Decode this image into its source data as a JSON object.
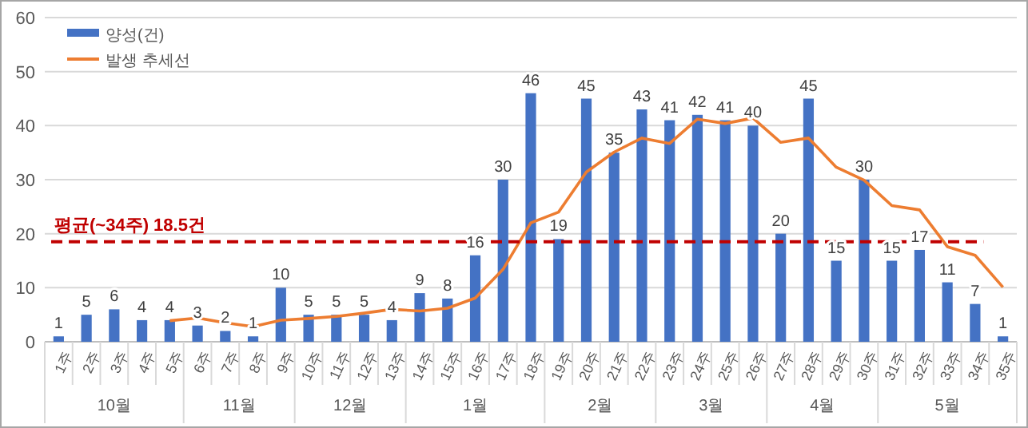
{
  "chart_data": {
    "type": "bar",
    "categories": [
      "1주",
      "2주",
      "3주",
      "4주",
      "5주",
      "6주",
      "7주",
      "8주",
      "9주",
      "10주",
      "11주",
      "12주",
      "13주",
      "14주",
      "15주",
      "16주",
      "17주",
      "18주",
      "19주",
      "20주",
      "21주",
      "22주",
      "23주",
      "24주",
      "25주",
      "26주",
      "27주",
      "28주",
      "29주",
      "30주",
      "31주",
      "32주",
      "33주",
      "34주",
      "35주"
    ],
    "series": [
      {
        "name": "양성(건)",
        "color": "#4472c4",
        "values": [
          1,
          5,
          6,
          4,
          4,
          3,
          2,
          1,
          10,
          5,
          5,
          5,
          4,
          9,
          8,
          16,
          30,
          46,
          19,
          45,
          35,
          43,
          41,
          42,
          41,
          40,
          20,
          45,
          15,
          30,
          15,
          17,
          11,
          7,
          1
        ],
        "value_labels": [
          "1",
          "5",
          "6",
          "4",
          "4",
          "3",
          "2",
          "1",
          "10",
          "5",
          "5",
          "5",
          "4",
          "9",
          "8",
          "16",
          "30",
          "46",
          "19",
          "45",
          "35",
          "43",
          "41",
          "42",
          "41",
          "40",
          "20",
          "45",
          "15",
          "30",
          "15",
          "17",
          "11",
          "7",
          "1"
        ]
      },
      {
        "name": "발생 추세선",
        "color": "#ed7d31",
        "type": "line",
        "values": [
          null,
          null,
          null,
          null,
          3.9,
          4.4,
          3.5,
          2.8,
          4.0,
          4.3,
          4.7,
          5.3,
          6.0,
          5.7,
          6.2,
          8.1,
          13.4,
          22.0,
          24.0,
          31.4,
          35.1,
          37.7,
          36.7,
          41.2,
          40.4,
          41.4,
          36.9,
          37.7,
          32.3,
          29.9,
          25.2,
          24.4,
          17.6,
          16.0,
          10.1
        ]
      }
    ],
    "ylim": [
      0,
      60
    ],
    "yticks": [
      0,
      10,
      20,
      30,
      40,
      50,
      60
    ],
    "grid": "y",
    "legend": "top left",
    "ref_lines": [
      {
        "axis": "y",
        "value": 18.5,
        "label": "평균(~34주) 18.5건",
        "color": "#c00000",
        "line_style": "dashed"
      }
    ],
    "annotations": [
      "10월",
      "11월",
      "12월",
      "1월",
      "2월",
      "3월",
      "4월",
      "5월"
    ]
  }
}
